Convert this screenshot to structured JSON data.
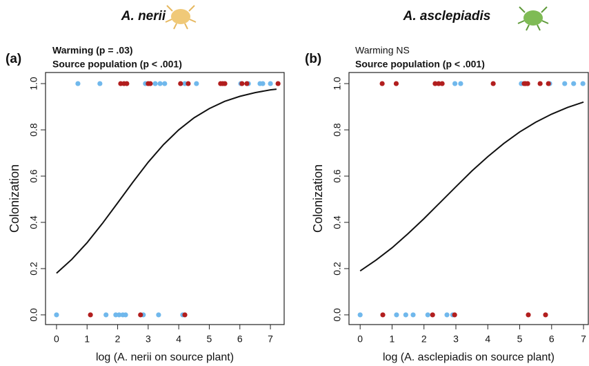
{
  "chart_data": [
    {
      "type": "scatter",
      "title": "A. nerii",
      "panel_label": "(a)",
      "subtitle": [
        "Warming (p = .03)",
        "Source population (p < .001)"
      ],
      "xlabel": "log (A. nerii on source plant)",
      "ylabel": "Colonization",
      "xlim": [
        -0.36,
        7.45
      ],
      "ylim": [
        -0.042,
        1.048
      ],
      "xticks": [
        0,
        1,
        2,
        3,
        4,
        5,
        6,
        7
      ],
      "yticks": [
        {
          "value": 0,
          "label": "0.0"
        },
        0.2,
        0.4,
        0.6,
        0.8,
        {
          "value": 1,
          "label": "1.0"
        }
      ],
      "series": [
        {
          "color": "#70b8ec",
          "x": [
            0.7,
            1.42,
            2.91,
            3.23,
            3.39,
            3.54,
            4.2,
            4.58,
            6.03,
            6.28,
            6.66,
            6.75,
            7.0,
            0,
            1.62,
            1.94,
            2.05,
            2.17,
            2.26,
            2.84,
            3.34,
            4.13
          ],
          "values": [
            1,
            1,
            1,
            1,
            1,
            1,
            1,
            1,
            1,
            1,
            1,
            1,
            1,
            0,
            0,
            0,
            0,
            0,
            0,
            0,
            0,
            0
          ]
        },
        {
          "color": "#b21e1e",
          "x": [
            2.1,
            2.21,
            2.3,
            3.0,
            3.07,
            4.06,
            4.31,
            5.37,
            5.44,
            5.51,
            6.07,
            6.23,
            7.25,
            1.11,
            2.75,
            4.2
          ],
          "values": [
            1,
            1,
            1,
            1,
            1,
            1,
            1,
            1,
            1,
            1,
            1,
            1,
            1,
            0,
            0,
            0
          ]
        }
      ],
      "curve": {
        "color": "#111111",
        "x": [
          0,
          0.5,
          1,
          1.5,
          2,
          2.5,
          3,
          3.5,
          4,
          4.5,
          5,
          5.5,
          6,
          6.5,
          7,
          7.2
        ],
        "values": [
          0.18,
          0.24,
          0.312,
          0.395,
          0.484,
          0.574,
          0.66,
          0.736,
          0.8,
          0.852,
          0.892,
          0.923,
          0.945,
          0.961,
          0.973,
          0.976
        ]
      }
    },
    {
      "type": "scatter",
      "title": "A. asclepiadis",
      "panel_label": "(b)",
      "subtitle": [
        "Warming NS",
        "Source population (p < .001)"
      ],
      "xlabel": "log (A. asclepiadis on source plant)",
      "ylabel": "Colonization",
      "xlim": [
        -0.35,
        7.15
      ],
      "ylim": [
        -0.042,
        1.048
      ],
      "xticks": [
        0,
        1,
        2,
        3,
        4,
        5,
        6,
        7
      ],
      "yticks": [
        {
          "value": 0,
          "label": "0.0"
        },
        0.2,
        0.4,
        0.6,
        0.8,
        {
          "value": 1,
          "label": "1.0"
        }
      ],
      "series": [
        {
          "color": "#70b8ec",
          "x": [
            2.97,
            3.15,
            5.05,
            5.94,
            6.41,
            6.69,
            6.98,
            0,
            1.14,
            1.43,
            1.66,
            2.12,
            2.72,
            2.9
          ],
          "values": [
            1,
            1,
            1,
            1,
            1,
            1,
            1,
            0,
            0,
            0,
            0,
            0,
            0,
            0
          ]
        },
        {
          "color": "#b21e1e",
          "x": [
            0.69,
            1.13,
            2.35,
            2.46,
            2.57,
            4.17,
            5.14,
            5.18,
            5.25,
            5.64,
            5.9,
            0.71,
            2.27,
            2.96,
            5.27,
            5.81
          ],
          "values": [
            1,
            1,
            1,
            1,
            1,
            1,
            1,
            1,
            1,
            1,
            1,
            0,
            0,
            0,
            0,
            0
          ]
        }
      ],
      "curve": {
        "color": "#111111",
        "x": [
          0,
          0.5,
          1,
          1.5,
          2,
          2.5,
          3,
          3.5,
          4,
          4.5,
          5,
          5.5,
          6,
          6.5,
          7
        ],
        "values": [
          0.19,
          0.237,
          0.29,
          0.351,
          0.416,
          0.485,
          0.554,
          0.622,
          0.684,
          0.741,
          0.791,
          0.833,
          0.868,
          0.897,
          0.92
        ]
      }
    }
  ]
}
